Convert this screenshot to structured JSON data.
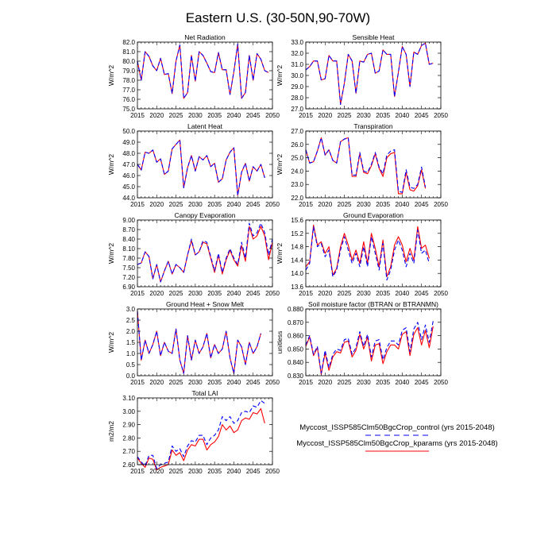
{
  "figure": {
    "title": "Eastern U.S. (30-50N,90-70W)",
    "xticks": [
      2015,
      2020,
      2025,
      2030,
      2035,
      2040,
      2045,
      2050
    ],
    "xrange": [
      2015,
      2050
    ]
  },
  "legend": {
    "items": [
      {
        "label": "Myccost_ISSP585Clm50BgcCrop_control (yrs 2015-2048)",
        "color": "#0000ff",
        "dash": "dashed"
      },
      {
        "label": "Myccost_ISSP585Clm50BgcCrop_kparams (yrs 2015-2048)",
        "color": "#ff0000",
        "dash": "solid"
      }
    ]
  },
  "chart_data": [
    {
      "type": "line",
      "title": "Net Radiation",
      "ylabel": "W/m^2",
      "ylim": [
        75.0,
        82.0
      ],
      "yticks": [
        "75.0",
        "76.0",
        "77.0",
        "78.0",
        "79.0",
        "80.0",
        "81.0",
        "82.0"
      ],
      "x_start": 2015,
      "series": [
        {
          "name": "control",
          "values": [
            80.0,
            78.0,
            81.0,
            80.5,
            79.5,
            79.0,
            80.3,
            78.6,
            78.7,
            76.6,
            80.0,
            81.7,
            76.1,
            76.7,
            80.6,
            77.9,
            81.0,
            80.6,
            79.8,
            78.9,
            78.8,
            80.9,
            79.1,
            79.1,
            76.5,
            78.9,
            81.8,
            76.1,
            76.7,
            80.6,
            78.0,
            80.8,
            80.2,
            79.0,
            78.8
          ]
        },
        {
          "name": "kparams",
          "values": [
            80.0,
            78.0,
            81.0,
            80.5,
            79.5,
            79.0,
            80.3,
            78.6,
            78.7,
            76.6,
            80.0,
            81.7,
            76.1,
            76.7,
            80.6,
            77.9,
            81.0,
            80.6,
            79.8,
            78.9,
            78.8,
            80.9,
            79.1,
            79.1,
            76.5,
            78.9,
            81.8,
            76.1,
            76.7,
            80.6,
            78.0,
            80.8,
            80.2,
            79.0,
            78.8
          ]
        }
      ]
    },
    {
      "type": "line",
      "title": "Sensible Heat",
      "ylabel": "W/m^2",
      "ylim": [
        27.0,
        33.0
      ],
      "yticks": [
        "27.0",
        "28.0",
        "29.0",
        "30.0",
        "31.0",
        "32.0",
        "33.0"
      ],
      "x_start": 2015,
      "series": [
        {
          "name": "control",
          "values": [
            30.5,
            30.8,
            31.3,
            31.3,
            29.6,
            29.7,
            31.8,
            31.3,
            31.3,
            27.4,
            29.3,
            31.9,
            31.3,
            28.4,
            31.3,
            31.2,
            31.9,
            32.0,
            30.2,
            30.4,
            32.3,
            31.9,
            31.9,
            28.1,
            30.3,
            32.6,
            31.9,
            29.0,
            32.1,
            31.9,
            32.7,
            32.9,
            31.0,
            31.1
          ]
        },
        {
          "name": "kparams",
          "values": [
            30.5,
            30.8,
            31.3,
            31.3,
            29.6,
            29.7,
            31.8,
            31.3,
            31.3,
            27.4,
            29.3,
            31.9,
            31.3,
            28.4,
            31.3,
            31.2,
            31.9,
            32.0,
            30.2,
            30.4,
            32.3,
            31.9,
            31.9,
            28.1,
            30.3,
            32.6,
            31.9,
            29.0,
            32.1,
            31.9,
            32.7,
            32.9,
            31.0,
            31.1
          ]
        }
      ]
    },
    {
      "type": "line",
      "title": "Latent Heat",
      "ylabel": "W/m^2",
      "ylim": [
        44.0,
        50.0
      ],
      "yticks": [
        "44.0",
        "45.0",
        "46.0",
        "47.0",
        "48.0",
        "49.0",
        "50.0"
      ],
      "x_start": 2015,
      "series": [
        {
          "name": "control",
          "values": [
            47.0,
            46.5,
            48.1,
            48.0,
            48.3,
            47.2,
            47.5,
            46.1,
            46.4,
            48.4,
            48.8,
            49.2,
            44.9,
            46.7,
            47.8,
            46.4,
            47.7,
            47.4,
            47.8,
            46.8,
            47.1,
            45.4,
            45.7,
            47.4,
            48.1,
            48.5,
            44.2,
            46.3,
            47.1,
            45.5,
            46.8,
            46.4,
            47.0,
            45.8
          ]
        },
        {
          "name": "kparams",
          "values": [
            47.0,
            46.5,
            48.1,
            48.0,
            48.3,
            47.2,
            47.5,
            46.1,
            46.4,
            48.4,
            48.8,
            49.2,
            44.9,
            46.7,
            47.8,
            46.4,
            47.7,
            47.4,
            47.8,
            46.8,
            47.1,
            45.4,
            45.7,
            47.4,
            48.1,
            48.5,
            44.2,
            46.3,
            47.1,
            45.5,
            46.8,
            46.4,
            47.0,
            45.8
          ]
        }
      ]
    },
    {
      "type": "line",
      "title": "Transpiration",
      "ylabel": "W/m^2",
      "ylim": [
        22.0,
        27.0
      ],
      "yticks": [
        "22.0",
        "23.0",
        "24.0",
        "25.0",
        "26.0",
        "27.0"
      ],
      "x_start": 2015,
      "series": [
        {
          "name": "control",
          "values": [
            25.6,
            24.6,
            24.7,
            25.5,
            26.5,
            25.2,
            25.6,
            24.8,
            24.6,
            26.2,
            26.4,
            26.5,
            23.7,
            23.7,
            25.4,
            24.0,
            23.9,
            24.5,
            25.4,
            24.3,
            23.8,
            25.2,
            25.5,
            25.6,
            22.5,
            22.4,
            24.1,
            22.8,
            22.7,
            23.0,
            24.3,
            22.8
          ]
        },
        {
          "name": "kparams",
          "values": [
            25.6,
            24.6,
            24.7,
            25.5,
            26.5,
            25.2,
            25.6,
            24.8,
            24.6,
            26.2,
            26.4,
            26.5,
            23.6,
            23.6,
            25.3,
            23.9,
            23.8,
            24.4,
            25.3,
            24.2,
            23.6,
            25.0,
            25.3,
            25.4,
            22.3,
            22.3,
            23.9,
            22.6,
            22.5,
            22.9,
            24.1,
            22.7
          ]
        }
      ]
    },
    {
      "type": "line",
      "title": "Canopy Evaporation",
      "ylabel": "W/m^2",
      "ylim": [
        6.9,
        9.0
      ],
      "yticks": [
        "6.90",
        "7.20",
        "7.50",
        "7.80",
        "8.10",
        "8.40",
        "8.70",
        "9.00"
      ],
      "x_start": 2015,
      "series": [
        {
          "name": "control",
          "values": [
            7.6,
            7.65,
            8.0,
            7.85,
            7.15,
            7.6,
            7.05,
            7.4,
            7.7,
            7.3,
            7.6,
            7.5,
            7.35,
            7.9,
            8.4,
            7.9,
            8.0,
            8.35,
            8.3,
            7.85,
            7.4,
            7.95,
            7.35,
            7.8,
            8.1,
            7.8,
            7.6,
            8.3,
            7.8,
            8.9,
            8.5,
            8.6,
            8.9,
            8.6,
            7.9,
            8.4
          ]
        },
        {
          "name": "kparams",
          "values": [
            7.6,
            7.65,
            8.0,
            7.85,
            7.15,
            7.6,
            7.05,
            7.4,
            7.7,
            7.3,
            7.6,
            7.5,
            7.35,
            7.9,
            8.35,
            7.9,
            8.0,
            8.3,
            8.25,
            7.8,
            7.35,
            7.9,
            7.3,
            7.75,
            8.05,
            7.75,
            7.55,
            8.2,
            7.7,
            8.8,
            8.4,
            8.5,
            8.8,
            8.5,
            7.75,
            8.3
          ]
        }
      ]
    },
    {
      "type": "line",
      "title": "Ground Evaporation",
      "ylabel": "W/m^2",
      "ylim": [
        13.6,
        15.6
      ],
      "yticks": [
        "13.6",
        "14.0",
        "14.4",
        "14.8",
        "15.2",
        "15.6"
      ],
      "x_start": 2015,
      "series": [
        {
          "name": "control",
          "values": [
            14.1,
            14.3,
            15.4,
            14.8,
            14.9,
            14.5,
            14.7,
            13.9,
            14.1,
            14.7,
            15.1,
            14.7,
            14.3,
            14.6,
            14.2,
            14.8,
            14.2,
            15.1,
            14.6,
            14.1,
            14.9,
            13.8,
            14.1,
            14.7,
            15.0,
            14.7,
            14.2,
            14.6,
            14.3,
            15.3,
            14.6,
            14.7,
            14.3
          ]
        },
        {
          "name": "kparams",
          "values": [
            14.2,
            14.35,
            15.45,
            14.85,
            14.95,
            14.6,
            14.8,
            13.95,
            14.15,
            14.8,
            15.2,
            14.85,
            14.4,
            14.7,
            14.3,
            14.95,
            14.3,
            15.2,
            14.75,
            14.2,
            15.0,
            13.9,
            14.2,
            14.85,
            15.1,
            14.85,
            14.35,
            14.75,
            14.4,
            15.4,
            14.75,
            14.85,
            14.45
          ]
        }
      ]
    },
    {
      "type": "line",
      "title": "Ground Heat + Snow Melt",
      "ylabel": "W/m^2",
      "ylim": [
        0.0,
        3.0
      ],
      "yticks": [
        "0.0",
        "0.5",
        "1.0",
        "1.5",
        "2.0",
        "2.5",
        "3.0"
      ],
      "x_start": 2015,
      "series": [
        {
          "name": "control",
          "values": [
            2.9,
            0.7,
            1.6,
            1.0,
            1.4,
            2.0,
            0.9,
            1.5,
            1.1,
            1.0,
            2.1,
            0.7,
            0.1,
            1.8,
            0.7,
            1.6,
            1.0,
            1.3,
            1.9,
            0.8,
            1.4,
            1.0,
            1.2,
            2.0,
            0.8,
            0.1,
            1.6,
            1.3,
            0.5,
            1.5,
            1.0,
            1.3,
            1.9
          ]
        },
        {
          "name": "kparams",
          "values": [
            2.9,
            0.7,
            1.6,
            1.0,
            1.4,
            2.0,
            0.9,
            1.5,
            1.1,
            1.0,
            2.1,
            0.7,
            0.1,
            1.8,
            0.7,
            1.6,
            1.0,
            1.3,
            1.9,
            0.8,
            1.4,
            1.0,
            1.2,
            2.0,
            0.8,
            0.1,
            1.6,
            1.3,
            0.5,
            1.5,
            1.0,
            1.3,
            1.9
          ]
        }
      ]
    },
    {
      "type": "line",
      "title": "Soil moisture factor (BTRAN or BTRANMN)",
      "ylabel": "unitless",
      "ylim": [
        0.83,
        0.88
      ],
      "yticks": [
        "0.830",
        "0.840",
        "0.850",
        "0.860",
        "0.870",
        "0.880"
      ],
      "x_start": 2015,
      "series": [
        {
          "name": "control",
          "values": [
            0.853,
            0.86,
            0.846,
            0.852,
            0.832,
            0.849,
            0.836,
            0.846,
            0.85,
            0.849,
            0.857,
            0.858,
            0.846,
            0.851,
            0.863,
            0.852,
            0.861,
            0.844,
            0.856,
            0.857,
            0.842,
            0.851,
            0.856,
            0.856,
            0.853,
            0.864,
            0.866,
            0.848,
            0.865,
            0.87,
            0.857,
            0.868,
            0.855,
            0.871
          ]
        },
        {
          "name": "kparams",
          "values": [
            0.852,
            0.859,
            0.845,
            0.851,
            0.831,
            0.847,
            0.834,
            0.844,
            0.848,
            0.847,
            0.855,
            0.856,
            0.844,
            0.849,
            0.861,
            0.85,
            0.859,
            0.841,
            0.853,
            0.854,
            0.839,
            0.848,
            0.853,
            0.853,
            0.85,
            0.861,
            0.863,
            0.845,
            0.861,
            0.866,
            0.853,
            0.864,
            0.851,
            0.867
          ]
        }
      ]
    },
    {
      "type": "line",
      "title": "Total LAI",
      "ylabel": "m2/m2",
      "ylim": [
        2.6,
        3.1
      ],
      "yticks": [
        "2.60",
        "2.70",
        "2.80",
        "2.90",
        "3.00",
        "3.10"
      ],
      "x_start": 2015,
      "series": [
        {
          "name": "control",
          "values": [
            2.66,
            2.62,
            2.59,
            2.67,
            2.67,
            2.57,
            2.6,
            2.61,
            2.62,
            2.74,
            2.7,
            2.72,
            2.66,
            2.74,
            2.78,
            2.77,
            2.82,
            2.82,
            2.75,
            2.8,
            2.82,
            2.86,
            2.96,
            2.93,
            2.96,
            2.91,
            2.93,
            2.99,
            3.0,
            2.99,
            3.04,
            3.03,
            3.08,
            3.06
          ]
        },
        {
          "name": "kparams",
          "values": [
            2.65,
            2.61,
            2.58,
            2.65,
            2.64,
            2.56,
            2.58,
            2.59,
            2.6,
            2.71,
            2.67,
            2.69,
            2.63,
            2.71,
            2.75,
            2.74,
            2.79,
            2.79,
            2.71,
            2.75,
            2.77,
            2.81,
            2.9,
            2.86,
            2.89,
            2.84,
            2.86,
            2.93,
            2.95,
            2.94,
            2.99,
            2.98,
            3.02,
            2.91
          ]
        }
      ]
    }
  ]
}
